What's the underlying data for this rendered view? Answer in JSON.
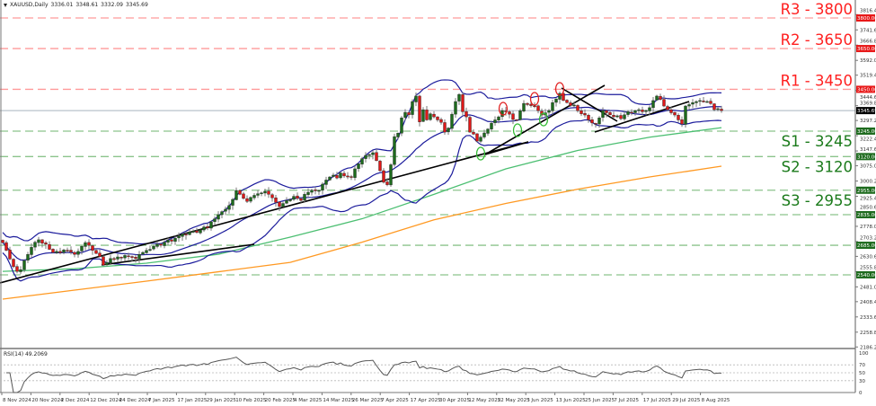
{
  "header": {
    "symbol": "XAUUSD,Daily",
    "open": "3336.01",
    "high": "3348.61",
    "low": "3332.09",
    "close": "3345.69"
  },
  "rsi": {
    "label": "RSI(14) 49.2069",
    "period": 14,
    "value": 49.2069,
    "levels": [
      70,
      50,
      30
    ],
    "axis_labels": [
      "100",
      "70",
      "50",
      "30",
      "0"
    ],
    "color": "#555555"
  },
  "chart_data": {
    "type": "candlestick",
    "symbol": "XAUUSD",
    "timeframe": "Daily",
    "last_price": 3345.69,
    "last_price_label": "3345.69",
    "ylim": [
      2186.2,
      3816.4
    ],
    "y_ticks": [
      "3816.40",
      "3741.60",
      "3666.80",
      "3592.00",
      "3519.40",
      "3444.60",
      "3369.80",
      "3297.20",
      "3222.40",
      "3147.60",
      "3075.00",
      "3000.20",
      "2925.40",
      "2850.60",
      "2778.00",
      "2703.20",
      "2630.60",
      "2555.80",
      "2481.00",
      "2408.40",
      "2333.60",
      "2258.80",
      "2186.20"
    ],
    "x_labels": [
      "8 Nov 2024",
      "20 Nov 2024",
      "2 Dec 2024",
      "12 Dec 2024",
      "24 Dec 2024",
      "7 Jan 2025",
      "17 Jan 2025",
      "29 Jan 2025",
      "10 Feb 2025",
      "20 Feb 2025",
      "4 Mar 2025",
      "14 Mar 2025",
      "26 Mar 2025",
      "7 Apr 2025",
      "17 Apr 2025",
      "30 Apr 2025",
      "12 May 2025",
      "22 May 2025",
      "3 Jun 2025",
      "13 Jun 2025",
      "25 Jun 2025",
      "7 Jul 2025",
      "17 Jul 2025",
      "29 Jul 2025",
      "8 Aug 2025"
    ],
    "closes": [
      2698,
      2660,
      2618,
      2580,
      2557,
      2565,
      2610,
      2640,
      2675,
      2700,
      2712,
      2695,
      2690,
      2665,
      2650,
      2655,
      2648,
      2662,
      2660,
      2652,
      2640,
      2655,
      2680,
      2698,
      2685,
      2660,
      2645,
      2630,
      2588,
      2600,
      2620,
      2615,
      2628,
      2622,
      2635,
      2630,
      2625,
      2620,
      2640,
      2650,
      2660,
      2665,
      2680,
      2690,
      2685,
      2700,
      2710,
      2705,
      2720,
      2730,
      2740,
      2735,
      2750,
      2755,
      2748,
      2760,
      2775,
      2770,
      2800,
      2815,
      2835,
      2850,
      2862,
      2880,
      2910,
      2954,
      2935,
      2915,
      2900,
      2920,
      2930,
      2938,
      2942,
      2950,
      2935,
      2918,
      2895,
      2875,
      2890,
      2905,
      2910,
      2925,
      2915,
      2905,
      2935,
      2945,
      2955,
      2952,
      2954,
      2985,
      3005,
      3020,
      3029,
      3015,
      3040,
      3025,
      3020,
      3018,
      3060,
      3085,
      3110,
      3126,
      3130,
      3139,
      3100,
      3051,
      2994,
      2982,
      3080,
      3218,
      3235,
      3310,
      3337,
      3325,
      3390,
      3417,
      3290,
      3350,
      3300,
      3330,
      3315,
      3300,
      3288,
      3240,
      3260,
      3328,
      3390,
      3425,
      3340,
      3315,
      3240,
      3230,
      3196,
      3215,
      3236,
      3255,
      3284,
      3300,
      3315,
      3346,
      3340,
      3328,
      3302,
      3300,
      3345,
      3381,
      3375,
      3370,
      3368,
      3345,
      3324,
      3335,
      3346,
      3385,
      3403,
      3430,
      3395,
      3385,
      3370,
      3373,
      3345,
      3330,
      3324,
      3300,
      3285,
      3280,
      3310,
      3346,
      3335,
      3325,
      3315,
      3320,
      3306,
      3325,
      3340,
      3335,
      3346,
      3350,
      3340,
      3346,
      3360,
      3395,
      3417,
      3400,
      3368,
      3350,
      3335,
      3324,
      3300,
      3280,
      3368,
      3375,
      3385,
      3390,
      3395,
      3388,
      3390,
      3380,
      3350,
      3355,
      3345.69
    ],
    "levels": [
      {
        "label": "R3 - 3800",
        "value": 3800,
        "badge": "3800.00",
        "kind": "resistance"
      },
      {
        "label": "R2 - 3650",
        "value": 3650,
        "badge": "3650.00",
        "kind": "resistance"
      },
      {
        "label": "R1 - 3450",
        "value": 3450,
        "badge": "3450.00",
        "kind": "resistance"
      },
      {
        "label": "S1 - 3245",
        "value": 3245,
        "badge": "3245.00",
        "kind": "support"
      },
      {
        "label": "S2 - 3120",
        "value": 3120,
        "badge": "3120.00",
        "kind": "support"
      },
      {
        "label": "S3 - 2955",
        "value": 2955,
        "badge": "2955.00",
        "kind": "support"
      },
      {
        "label": "",
        "value": 2835,
        "badge": "2835.00",
        "kind": "support"
      },
      {
        "label": "",
        "value": 2685,
        "badge": "2685.00",
        "kind": "support"
      },
      {
        "label": "",
        "value": 2540,
        "badge": "2540.00",
        "kind": "support"
      }
    ],
    "bollinger": {
      "period": 20,
      "deviations": 2,
      "color": "#1c1c9c"
    },
    "moving_averages": [
      {
        "color": "#4cbf72",
        "values": [
          2557,
          2570,
          2597,
          2641,
          2725,
          2815,
          2935,
          3060,
          3150,
          3215,
          3262
        ]
      },
      {
        "color": "#ff9922",
        "values": [
          2421,
          2465,
          2509,
          2555,
          2601,
          2700,
          2810,
          2890,
          2960,
          3020,
          3073
        ]
      }
    ],
    "colors": {
      "up": "#1d6b1d",
      "down": "#e01818",
      "wick": "#7a7a7a",
      "resistance": "#ff2020",
      "resistance_line": "#ff9a9a",
      "support": "#1a7a1a",
      "support_line": "#8cc48c",
      "price_line": "#a9b4bf"
    }
  }
}
